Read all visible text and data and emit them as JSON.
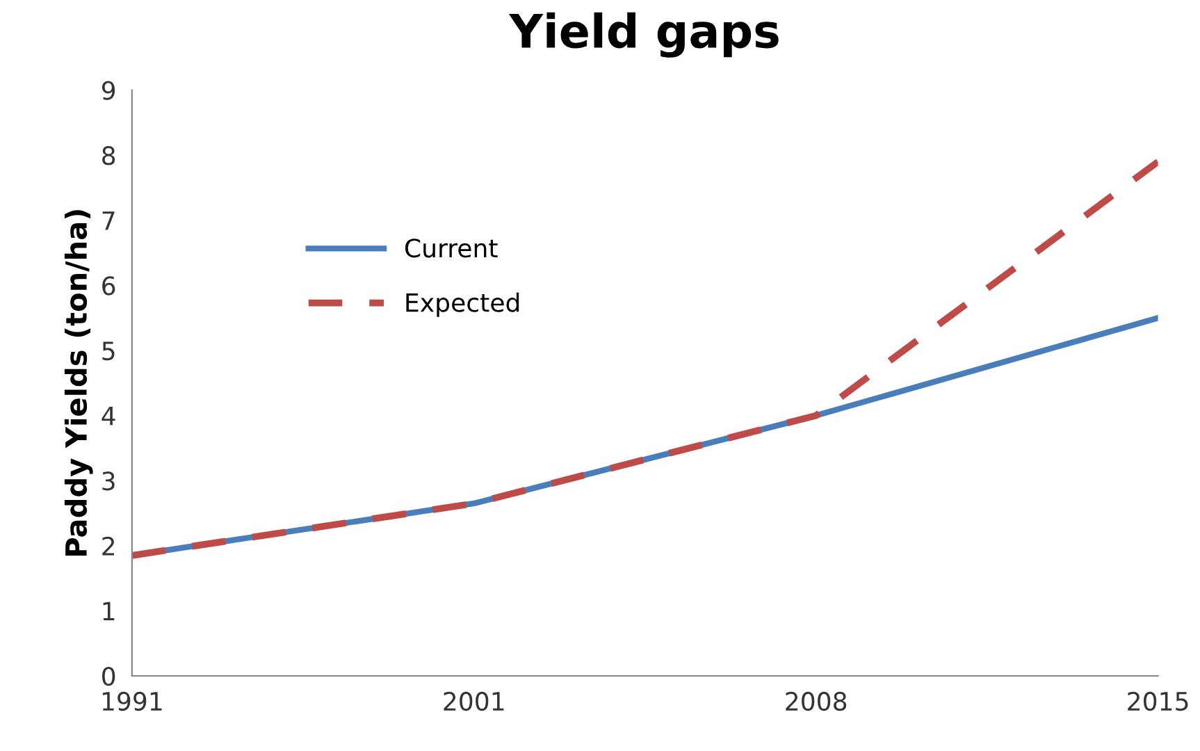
{
  "chart_data": {
    "type": "line",
    "title": "Yield gaps",
    "ylabel": "Paddy Yields (ton/ha)",
    "categories": [
      "1991",
      "2001",
      "2008",
      "2015"
    ],
    "series": [
      {
        "name": "Current",
        "color": "#4a7ebb",
        "values": [
          1.85,
          2.65,
          4.0,
          5.5
        ],
        "line_style": "solid"
      },
      {
        "name": "Expected",
        "color": "#be4b48",
        "values": [
          1.85,
          2.65,
          4.0,
          7.9
        ],
        "line_style": "dashed"
      }
    ],
    "ylim": [
      0,
      9
    ],
    "yticks": [
      0,
      1,
      2,
      3,
      4,
      5,
      6,
      7,
      8,
      9
    ],
    "grid": false,
    "legend": "center left",
    "marker": "none"
  }
}
